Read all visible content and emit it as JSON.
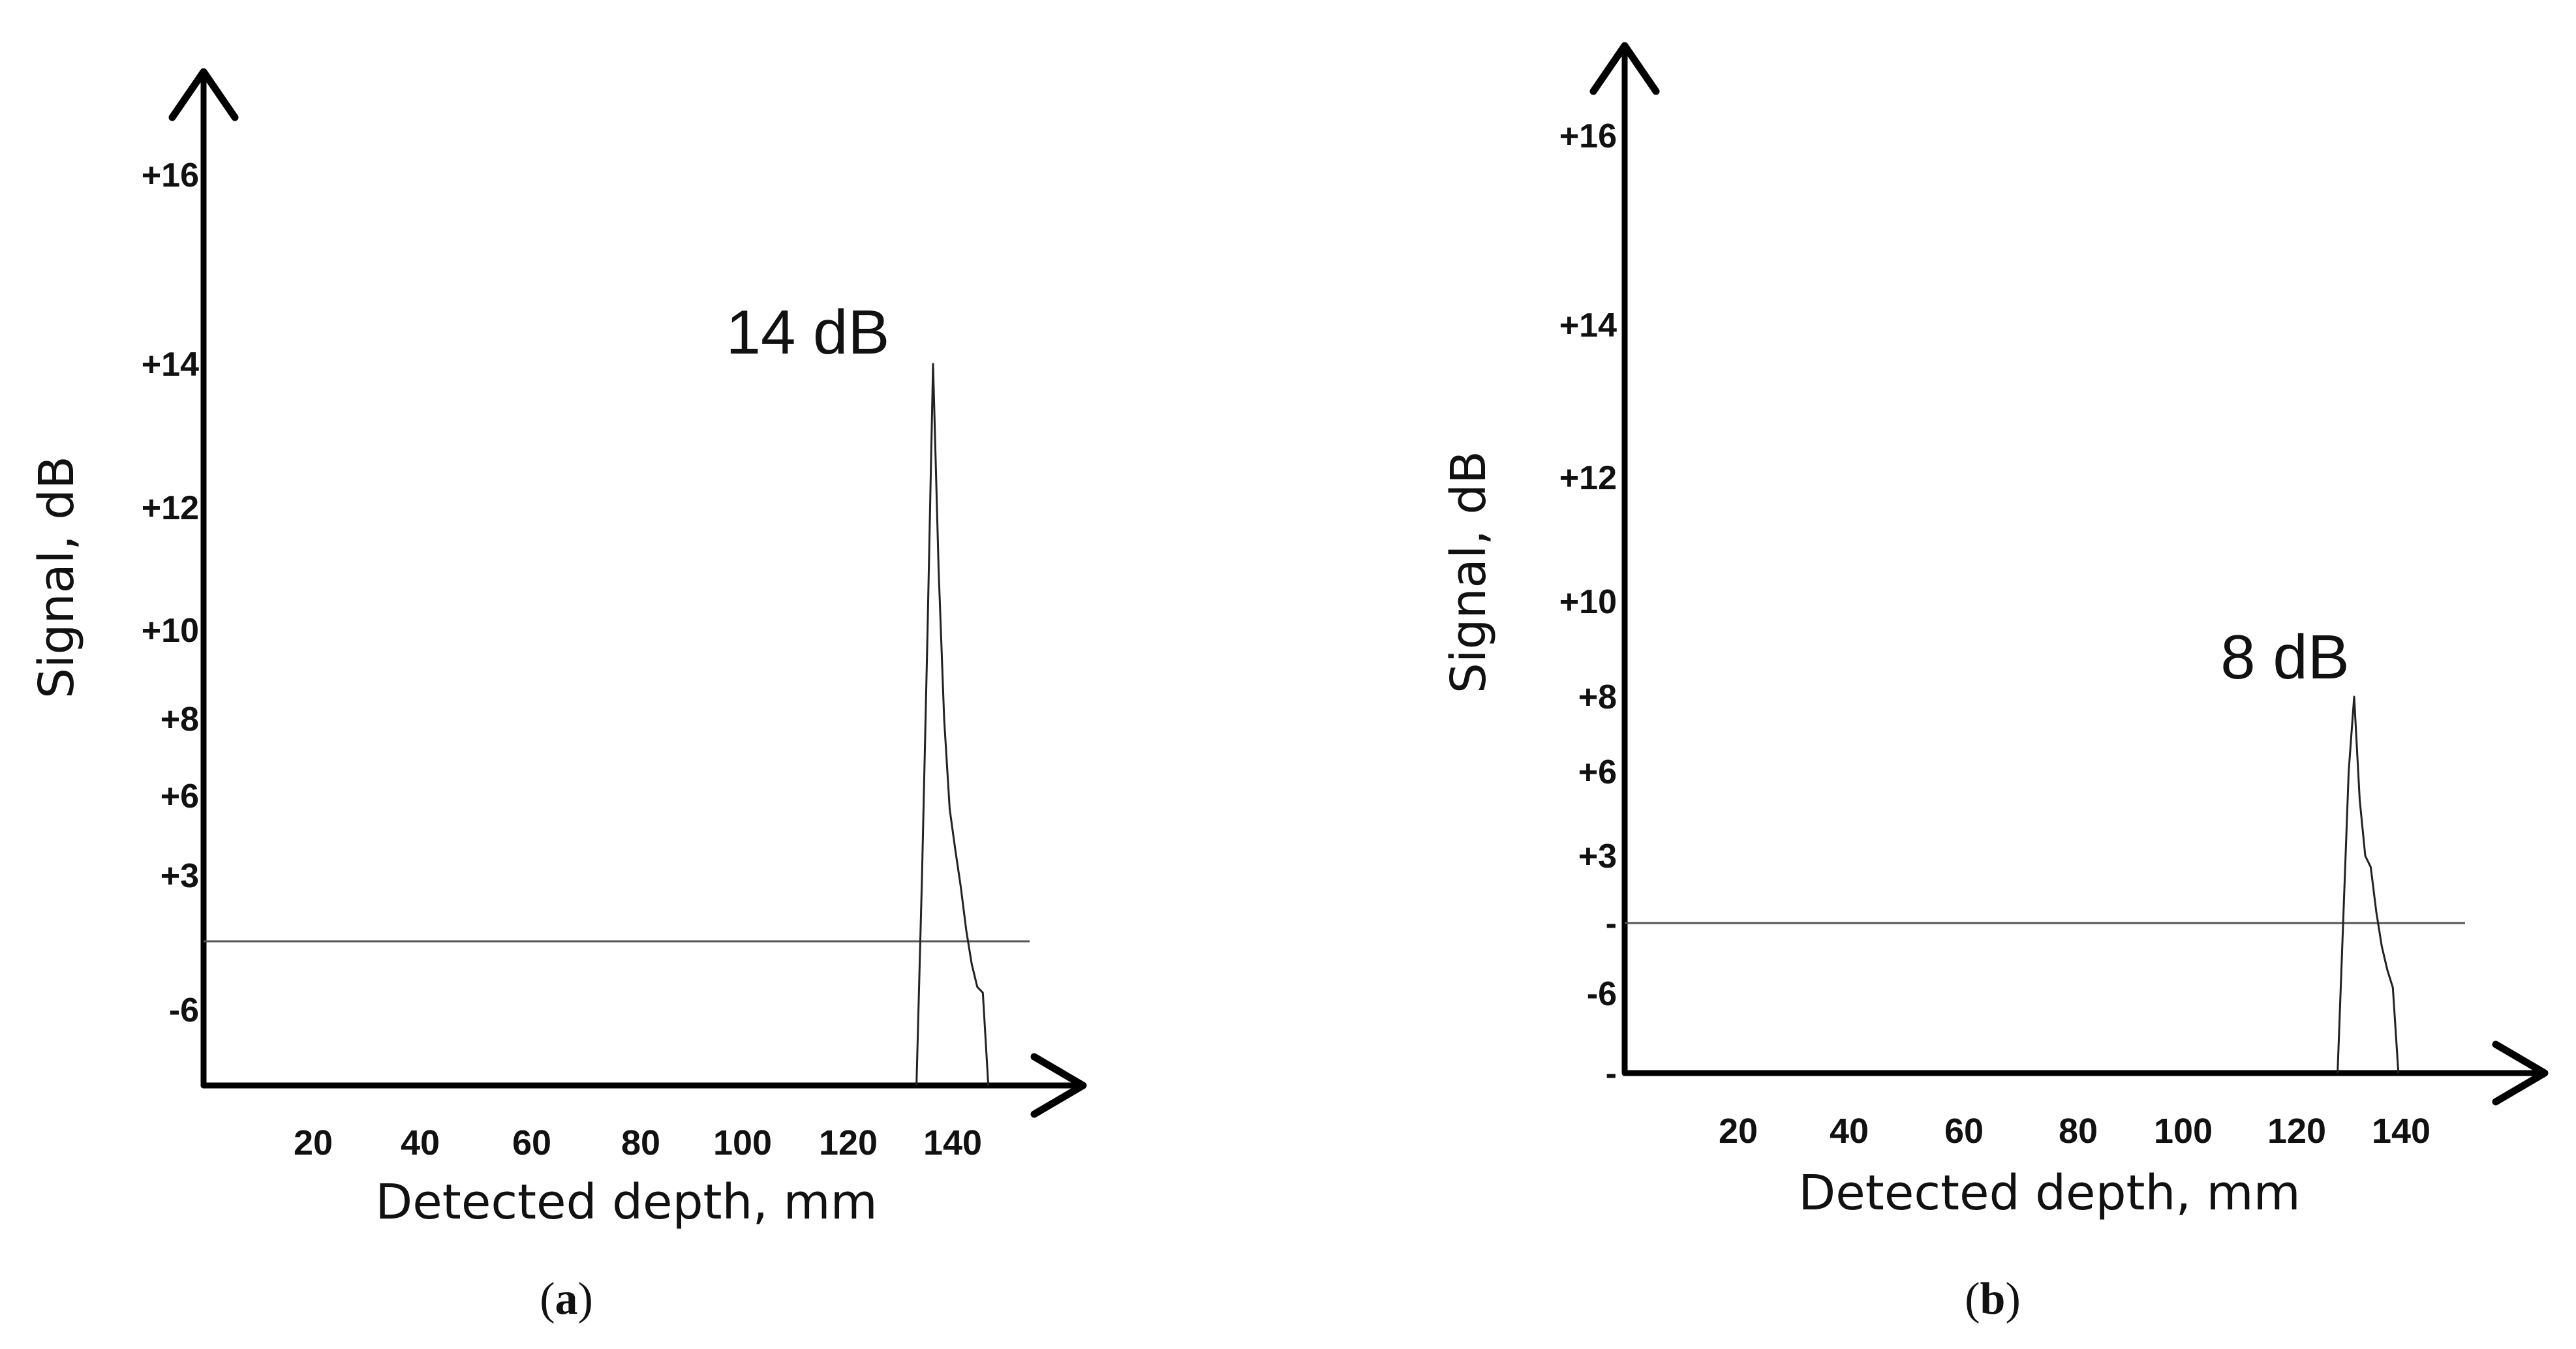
{
  "chart_data": [
    {
      "panel": "a",
      "type": "line",
      "caption_open": "(",
      "caption_letter": "a",
      "caption_close": ")",
      "xlabel": "Detected depth, mm",
      "ylabel": "Signal, dB",
      "x_ticks": [
        "20",
        "40",
        "60",
        "80",
        "100",
        "120",
        "140"
      ],
      "y_ticks": [
        {
          "label": "+16",
          "value": 16
        },
        {
          "label": "+14",
          "value": 14
        },
        {
          "label": "+12",
          "value": 12
        },
        {
          "label": "+10",
          "value": 10
        },
        {
          "label": "+8",
          "value": 8
        },
        {
          "label": "+6",
          "value": 6
        },
        {
          "label": "+3",
          "value": 3
        },
        {
          "label": "-6",
          "value": -6
        }
      ],
      "baseline": 0,
      "peak_label": "14 dB",
      "series": [
        {
          "x": [
            129,
            130,
            131,
            132,
            133,
            134,
            135,
            136,
            137,
            138,
            139,
            140,
            141,
            142
          ],
          "y": [
            -10,
            3,
            10,
            14,
            11,
            8,
            5.5,
            4,
            2.5,
            0.5,
            -2,
            -4,
            -4.5,
            -10
          ]
        }
      ]
    },
    {
      "panel": "b",
      "type": "line",
      "caption_open": "(",
      "caption_letter": "b",
      "caption_close": ")",
      "xlabel": "Detected depth, mm",
      "ylabel": "Signal, dB",
      "x_ticks": [
        "20",
        "40",
        "60",
        "80",
        "100",
        "120",
        "140"
      ],
      "y_ticks": [
        {
          "label": "+16",
          "value": 16
        },
        {
          "label": "+14",
          "value": 14
        },
        {
          "label": "+12",
          "value": 12
        },
        {
          "label": "+10",
          "value": 10
        },
        {
          "label": "+8",
          "value": 8
        },
        {
          "label": "+6",
          "value": 6
        },
        {
          "label": "+3",
          "value": 3
        },
        {
          "label": "-",
          "value": 0
        },
        {
          "label": "-6",
          "value": -6
        },
        {
          "label": "-",
          "value": -10
        }
      ],
      "baseline": 0,
      "peak_label": "8 dB",
      "series": [
        {
          "x": [
            129,
            130,
            131,
            132,
            133,
            134,
            135,
            136,
            137,
            138,
            139,
            140
          ],
          "y": [
            -10,
            0,
            6,
            8,
            5,
            3,
            2.5,
            0.5,
            -2,
            -4,
            -5.5,
            -10
          ]
        }
      ]
    }
  ]
}
